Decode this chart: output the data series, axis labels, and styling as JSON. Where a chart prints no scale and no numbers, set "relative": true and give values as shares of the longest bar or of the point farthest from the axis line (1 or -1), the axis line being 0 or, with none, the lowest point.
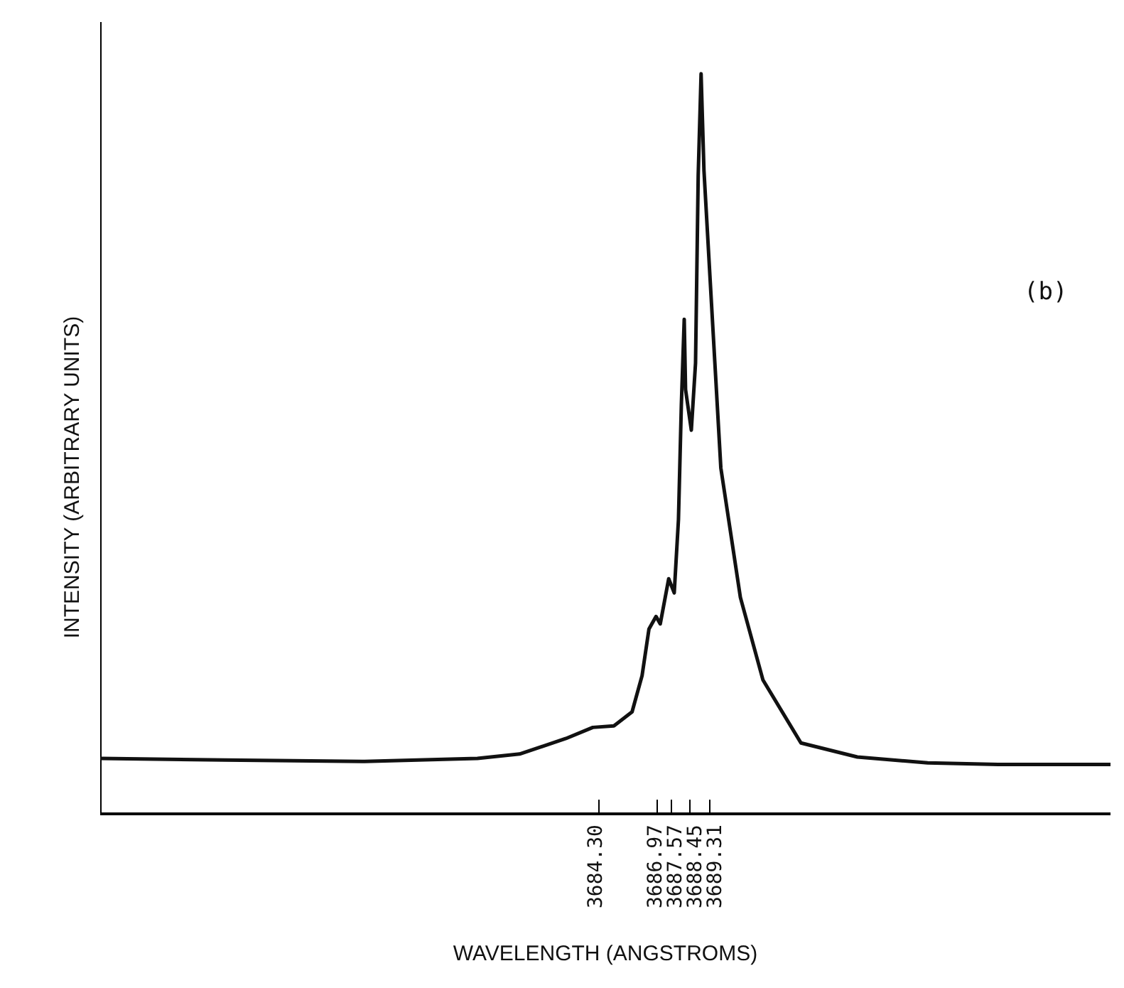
{
  "chart_data": {
    "type": "line",
    "relative": true,
    "xlabel": "WAVELENGTH (ANGSTROMS)",
    "ylabel": "INTENSITY (ARBITRARY UNITS)",
    "annotations": [
      "(b)"
    ],
    "xlim": [
      3661.85,
      3707.38
    ],
    "xticks": [
      {
        "value": 3684.3,
        "label": "3684.30"
      },
      {
        "value": 3686.97,
        "label": "3686.97"
      },
      {
        "value": 3687.57,
        "label": "3687.57"
      },
      {
        "value": 3688.45,
        "label": "3688.45"
      },
      {
        "value": 3689.31,
        "label": "3689.31"
      }
    ],
    "grid": false,
    "series": [
      {
        "color": "#111111",
        "x": [
          3661.85,
          3667.43,
          3673.77,
          3678.85,
          3680.75,
          3682.84,
          3684.05,
          3685.0,
          3685.82,
          3686.27,
          3686.58,
          3686.9,
          3687.09,
          3687.47,
          3687.72,
          3687.91,
          3688.04,
          3688.17,
          3688.23,
          3688.49,
          3688.68,
          3688.8,
          3688.93,
          3689.06,
          3689.31,
          3689.82,
          3690.7,
          3691.72,
          3693.43,
          3695.97,
          3699.14,
          3702.31,
          3707.38
        ],
        "values": [
          0.074,
          0.072,
          0.07,
          0.074,
          0.08,
          0.101,
          0.116,
          0.118,
          0.137,
          0.186,
          0.249,
          0.266,
          0.256,
          0.317,
          0.298,
          0.397,
          0.552,
          0.668,
          0.573,
          0.518,
          0.609,
          0.863,
          1.0,
          0.869,
          0.736,
          0.467,
          0.292,
          0.18,
          0.095,
          0.076,
          0.068,
          0.066,
          0.066
        ]
      }
    ]
  }
}
